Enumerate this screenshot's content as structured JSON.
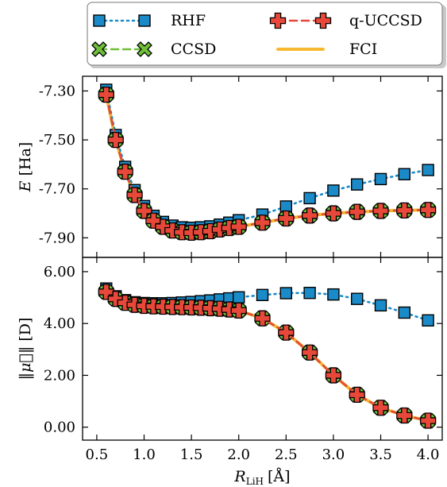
{
  "chart_data": [
    {
      "type": "scatter",
      "panel": "energy",
      "ylabel": {
        "var": "E",
        "unit": "[Ha]"
      },
      "yticks": [
        "-7.30",
        "-7.50",
        "-7.70",
        "-7.90"
      ],
      "ytick_values": [
        -7.3,
        -7.5,
        -7.7,
        -7.9
      ],
      "ylim": [
        -7.98,
        -7.24
      ],
      "xlim": [
        0.35,
        4.15
      ],
      "legend": {
        "placement": "top",
        "entries": [
          "RHF",
          "CCSD",
          "q-UCCSD",
          "FCI"
        ]
      },
      "series": [
        {
          "name": "RHF",
          "color": "#1a8bc8",
          "linestyle": "dotted",
          "marker": "square",
          "x": [
            0.6,
            0.7,
            0.8,
            0.9,
            1.0,
            1.1,
            1.2,
            1.3,
            1.4,
            1.5,
            1.6,
            1.7,
            1.8,
            1.9,
            2.0,
            2.25,
            2.5,
            2.75,
            3.0,
            3.25,
            3.5,
            3.75,
            4.0
          ],
          "y": [
            -7.295,
            -7.48,
            -7.61,
            -7.705,
            -7.77,
            -7.81,
            -7.835,
            -7.85,
            -7.857,
            -7.859,
            -7.857,
            -7.853,
            -7.846,
            -7.838,
            -7.828,
            -7.805,
            -7.772,
            -7.738,
            -7.707,
            -7.682,
            -7.66,
            -7.64,
            -7.623
          ]
        },
        {
          "name": "CCSD",
          "color": "#6fbf3a",
          "linestyle": "dashed",
          "marker": "x",
          "x": [
            0.6,
            0.7,
            0.8,
            0.9,
            1.0,
            1.1,
            1.2,
            1.3,
            1.4,
            1.5,
            1.6,
            1.7,
            1.8,
            1.9,
            2.0,
            2.25,
            2.5,
            2.75,
            3.0,
            3.25,
            3.5,
            3.75,
            4.0
          ],
          "y": [
            -7.315,
            -7.5,
            -7.63,
            -7.725,
            -7.79,
            -7.83,
            -7.855,
            -7.87,
            -7.877,
            -7.879,
            -7.877,
            -7.873,
            -7.866,
            -7.86,
            -7.855,
            -7.838,
            -7.821,
            -7.809,
            -7.8,
            -7.794,
            -7.79,
            -7.788,
            -7.786
          ]
        },
        {
          "name": "q-UCCSD",
          "color": "#e8483a",
          "linestyle": "dashed",
          "marker": "plus",
          "x": [
            0.6,
            0.7,
            0.8,
            0.9,
            1.0,
            1.1,
            1.2,
            1.3,
            1.4,
            1.5,
            1.6,
            1.7,
            1.8,
            1.9,
            2.0,
            2.25,
            2.5,
            2.75,
            3.0,
            3.25,
            3.5,
            3.75,
            4.0
          ],
          "y": [
            -7.315,
            -7.5,
            -7.63,
            -7.725,
            -7.79,
            -7.83,
            -7.855,
            -7.87,
            -7.877,
            -7.879,
            -7.877,
            -7.873,
            -7.866,
            -7.86,
            -7.855,
            -7.838,
            -7.821,
            -7.809,
            -7.8,
            -7.794,
            -7.79,
            -7.788,
            -7.786
          ]
        },
        {
          "name": "FCI",
          "color": "#f7b731",
          "linestyle": "solid",
          "marker": "none",
          "x": [
            0.6,
            0.7,
            0.8,
            0.9,
            1.0,
            1.1,
            1.2,
            1.3,
            1.4,
            1.5,
            1.6,
            1.7,
            1.8,
            1.9,
            2.0,
            2.25,
            2.5,
            2.75,
            3.0,
            3.25,
            3.5,
            3.75,
            4.0
          ],
          "y": [
            -7.315,
            -7.5,
            -7.63,
            -7.725,
            -7.79,
            -7.83,
            -7.855,
            -7.87,
            -7.877,
            -7.879,
            -7.877,
            -7.873,
            -7.866,
            -7.86,
            -7.855,
            -7.838,
            -7.821,
            -7.809,
            -7.8,
            -7.794,
            -7.79,
            -7.788,
            -7.786
          ]
        }
      ]
    },
    {
      "type": "scatter",
      "panel": "dipole",
      "ylabel": {
        "var": "‖μ⃗‖",
        "unit": "[D]"
      },
      "xlabel": {
        "var": "R",
        "sub": "LiH",
        "unit": "[Å]"
      },
      "yticks": [
        "0.00",
        "2.00",
        "4.00",
        "6.00"
      ],
      "ytick_values": [
        0,
        2,
        4,
        6
      ],
      "xticks": [
        "0.5",
        "1.0",
        "1.5",
        "2.0",
        "2.5",
        "3.0",
        "3.5",
        "4.0"
      ],
      "xtick_values": [
        0.5,
        1.0,
        1.5,
        2.0,
        2.5,
        3.0,
        3.5,
        4.0
      ],
      "ylim": [
        -0.5,
        6.55
      ],
      "xlim": [
        0.35,
        4.15
      ],
      "series": [
        {
          "name": "RHF",
          "color": "#1a8bc8",
          "linestyle": "dotted",
          "marker": "square",
          "x": [
            0.6,
            0.7,
            0.8,
            0.9,
            1.0,
            1.1,
            1.2,
            1.3,
            1.4,
            1.5,
            1.6,
            1.7,
            1.8,
            1.9,
            2.0,
            2.25,
            2.5,
            2.75,
            3.0,
            3.25,
            3.5,
            3.75,
            4.0
          ],
          "y": [
            5.35,
            5.05,
            4.9,
            4.82,
            4.79,
            4.78,
            4.78,
            4.79,
            4.81,
            4.83,
            4.86,
            4.89,
            4.93,
            4.97,
            5.01,
            5.1,
            5.17,
            5.18,
            5.12,
            4.95,
            4.7,
            4.42,
            4.12
          ]
        },
        {
          "name": "CCSD",
          "color": "#6fbf3a",
          "linestyle": "dashed",
          "marker": "x",
          "x": [
            0.6,
            0.7,
            0.8,
            0.9,
            1.0,
            1.1,
            1.2,
            1.3,
            1.4,
            1.5,
            1.6,
            1.7,
            1.8,
            1.9,
            2.0,
            2.25,
            2.5,
            2.75,
            3.0,
            3.25,
            3.5,
            3.75,
            4.0
          ],
          "y": [
            5.22,
            4.95,
            4.8,
            4.72,
            4.68,
            4.66,
            4.65,
            4.64,
            4.63,
            4.62,
            4.61,
            4.59,
            4.57,
            4.54,
            4.5,
            4.2,
            3.65,
            2.88,
            2.0,
            1.25,
            0.75,
            0.45,
            0.25
          ]
        },
        {
          "name": "q-UCCSD",
          "color": "#e8483a",
          "linestyle": "dashed",
          "marker": "plus",
          "x": [
            0.6,
            0.7,
            0.8,
            0.9,
            1.0,
            1.1,
            1.2,
            1.3,
            1.4,
            1.5,
            1.6,
            1.7,
            1.8,
            1.9,
            2.0,
            2.25,
            2.5,
            2.75,
            3.0,
            3.25,
            3.5,
            3.75,
            4.0
          ],
          "y": [
            5.22,
            4.95,
            4.8,
            4.72,
            4.68,
            4.66,
            4.65,
            4.64,
            4.63,
            4.62,
            4.61,
            4.59,
            4.57,
            4.54,
            4.5,
            4.2,
            3.65,
            2.88,
            2.0,
            1.25,
            0.75,
            0.45,
            0.25
          ]
        },
        {
          "name": "FCI",
          "color": "#f7b731",
          "linestyle": "solid",
          "marker": "none",
          "x": [
            0.6,
            0.7,
            0.8,
            0.9,
            1.0,
            1.1,
            1.2,
            1.3,
            1.4,
            1.5,
            1.6,
            1.7,
            1.8,
            1.9,
            2.0,
            2.25,
            2.5,
            2.75,
            3.0,
            3.25,
            3.5,
            3.75,
            4.0
          ],
          "y": [
            5.22,
            4.95,
            4.8,
            4.72,
            4.68,
            4.66,
            4.65,
            4.64,
            4.63,
            4.62,
            4.61,
            4.59,
            4.57,
            4.54,
            4.5,
            4.2,
            3.65,
            2.88,
            2.0,
            1.25,
            0.75,
            0.45,
            0.25
          ]
        }
      ]
    }
  ]
}
